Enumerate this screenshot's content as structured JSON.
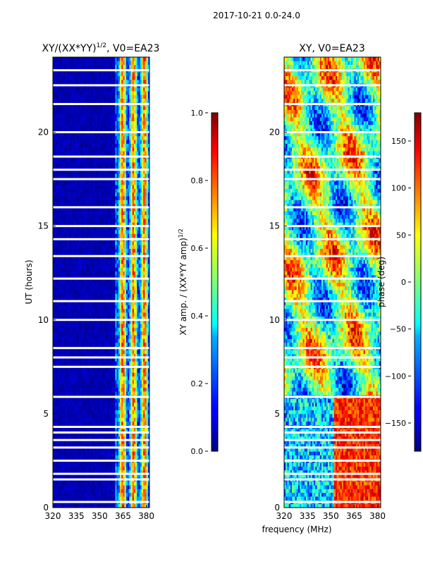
{
  "suptitle": "2017-10-21 0.0-24.0",
  "xlabel_shared": "frequency (MHz)",
  "chart_data": [
    {
      "type": "heatmap",
      "title_base": "XY/(XX*YY)",
      "title_sup": "1/2",
      "title_rest": ", V0=EA23",
      "ylabel": "UT (hours)",
      "xlim": [
        320,
        382
      ],
      "ylim": [
        0,
        24
      ],
      "xticks": [
        320,
        335,
        350,
        365,
        380
      ],
      "yticks": [
        0,
        5,
        10,
        15,
        20
      ],
      "colorbar": {
        "label_base": "XY amp. / (XX*YY amp)",
        "label_sup": "1/2",
        "min": 0.0,
        "max": 1.0,
        "ticks": [
          "0.0",
          "0.2",
          "0.4",
          "0.6",
          "0.8",
          "1.0"
        ],
        "tick_values": [
          0.0,
          0.2,
          0.4,
          0.6,
          0.8,
          1.0
        ],
        "colormap": "jet"
      },
      "high_amplitude_freq_range_mhz": [
        360,
        382
      ],
      "low_amplitude_freq_range_mhz": [
        320,
        360
      ],
      "flagged_ut_hours": [
        0.3,
        1.5,
        1.8,
        2.5,
        3.2,
        3.6,
        4.0,
        4.3,
        5.9,
        7.5,
        8.0,
        8.5,
        10.0,
        11.0,
        12.2,
        13.4,
        14.3,
        15.0,
        16.0,
        17.5,
        18.0,
        18.7,
        20.0,
        21.5,
        22.5,
        23.3
      ]
    },
    {
      "type": "heatmap",
      "title": "XY, V0=EA23",
      "ylabel": "",
      "xlim": [
        320,
        382
      ],
      "ylim": [
        0,
        24
      ],
      "xticks": [
        320,
        335,
        350,
        365,
        380
      ],
      "yticks": [
        0,
        5,
        10,
        15,
        20
      ],
      "colorbar": {
        "label": "phase (deg)",
        "min": -180,
        "max": 180,
        "ticks": [
          "−150",
          "−100",
          "−50",
          "0",
          "50",
          "100",
          "150"
        ],
        "tick_values": [
          -150,
          -100,
          -50,
          0,
          50,
          100,
          150
        ],
        "colormap": "jet"
      },
      "flagged_ut_hours": [
        0.3,
        1.5,
        1.8,
        2.5,
        3.2,
        3.6,
        4.0,
        4.3,
        5.9,
        7.5,
        8.0,
        8.5,
        10.0,
        11.0,
        12.2,
        13.4,
        14.3,
        15.0,
        16.0,
        17.5,
        18.0,
        18.7,
        20.0,
        21.5,
        22.5,
        23.3
      ]
    }
  ],
  "colors": {
    "jet_low": "#00007f",
    "jet_high": "#7f0000",
    "flag": "#ffffff"
  }
}
